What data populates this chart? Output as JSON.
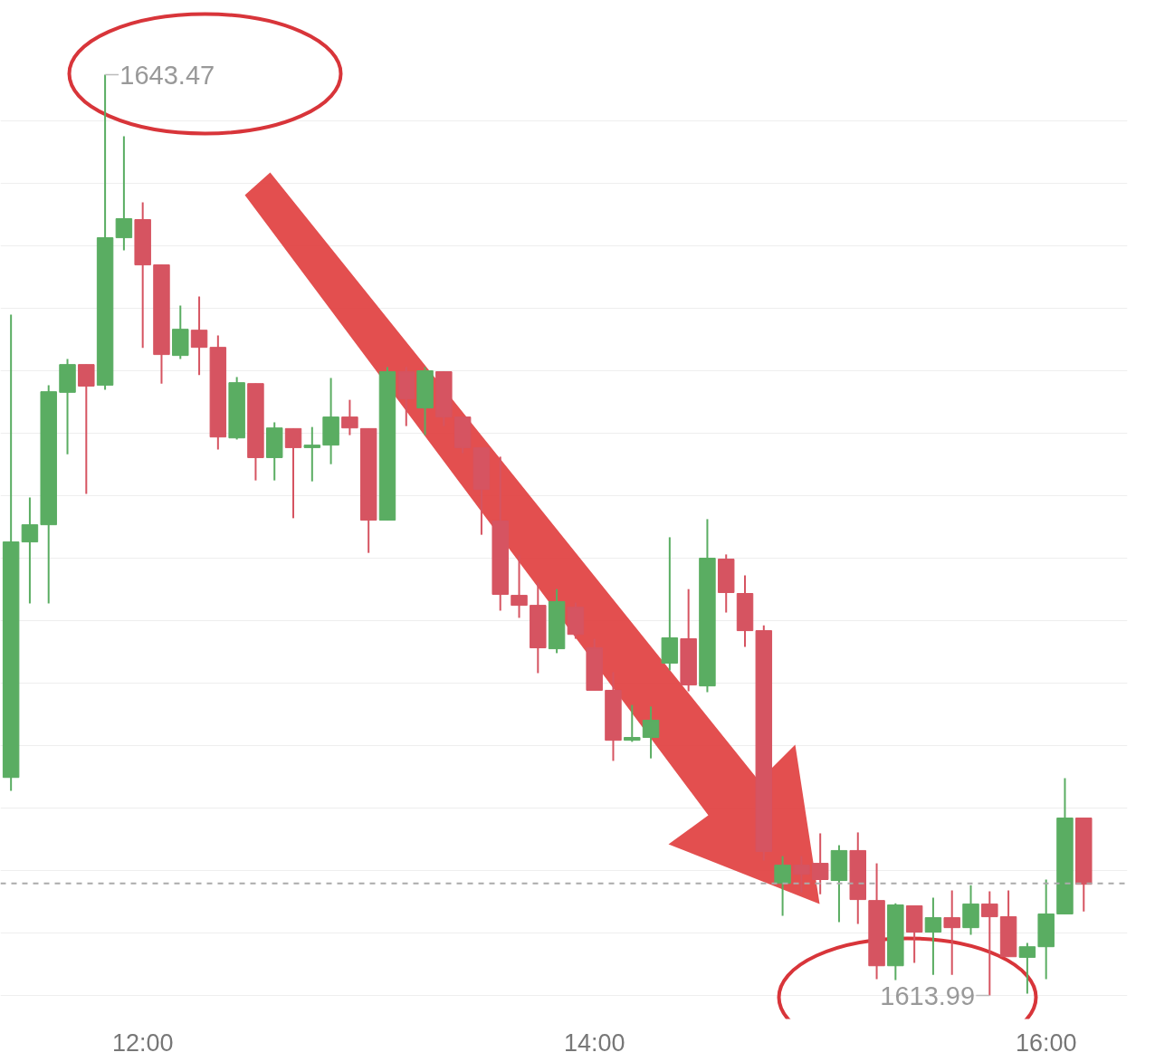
{
  "chart_data": {
    "type": "candlestick",
    "x": [
      11.4167,
      11.5,
      11.5833,
      11.6667,
      11.75,
      11.8333,
      11.9167,
      12,
      12.0833,
      12.1667,
      12.25,
      12.3333,
      12.4167,
      12.5,
      12.5833,
      12.6667,
      12.75,
      12.8333,
      12.9167,
      13,
      13.0833,
      13.1667,
      13.25,
      13.3333,
      13.4167,
      13.5,
      13.5833,
      13.6667,
      13.75,
      13.8333,
      13.9167,
      14,
      14.0833,
      14.1667,
      14.25,
      14.3333,
      14.4167,
      14.5,
      14.5833,
      14.6667,
      14.75,
      14.8333,
      14.9167,
      15,
      15.0833,
      15.1667,
      15.25,
      15.3333,
      15.4167,
      15.5,
      15.5833,
      15.6667,
      15.75,
      15.8333,
      15.9167,
      16,
      16.0833,
      16.1667
    ],
    "ohlc": [
      [
        1620.97,
        1635.79,
        1620.54,
        1628.51
      ],
      [
        1628.51,
        1629.93,
        1626.54,
        1629.06
      ],
      [
        1629.06,
        1633.53,
        1626.54,
        1633.32
      ],
      [
        1633.3,
        1634.37,
        1631.32,
        1634.19
      ],
      [
        1634.19,
        1634.19,
        1630.05,
        1633.5
      ],
      [
        1633.53,
        1643.47,
        1633.38,
        1638.25
      ],
      [
        1638.25,
        1641.5,
        1637.85,
        1638.86
      ],
      [
        1638.83,
        1639.38,
        1634.72,
        1637.38
      ],
      [
        1637.38,
        1637.38,
        1633.58,
        1634.51
      ],
      [
        1634.48,
        1636.08,
        1634.37,
        1635.32
      ],
      [
        1635.29,
        1636.37,
        1633.85,
        1634.74
      ],
      [
        1634.74,
        1635.12,
        1631.47,
        1631.87
      ],
      [
        1631.84,
        1633.79,
        1631.79,
        1633.61
      ],
      [
        1633.58,
        1633.58,
        1630.48,
        1631.21
      ],
      [
        1631.21,
        1632.34,
        1630.48,
        1632.16
      ],
      [
        1632.14,
        1632.14,
        1629.27,
        1631.53
      ],
      [
        1631.53,
        1632.19,
        1630.45,
        1631.61
      ],
      [
        1631.61,
        1633.76,
        1631.0,
        1632.51
      ],
      [
        1632.51,
        1633.06,
        1631.93,
        1632.16
      ],
      [
        1632.14,
        1632.14,
        1628.16,
        1629.21
      ],
      [
        1629.21,
        1634.11,
        1629.21,
        1633.96
      ],
      [
        1633.96,
        1634.11,
        1632.22,
        1633.09
      ],
      [
        1632.8,
        1634.11,
        1631.93,
        1633.99
      ],
      [
        1633.96,
        1633.96,
        1632.22,
        1632.51
      ],
      [
        1632.51,
        1632.51,
        1631.35,
        1631.53
      ],
      [
        1631.53,
        1631.53,
        1628.74,
        1630.19
      ],
      [
        1629.18,
        1631.24,
        1626.31,
        1626.83
      ],
      [
        1626.8,
        1628.08,
        1626.08,
        1626.48
      ],
      [
        1626.48,
        1627.21,
        1624.31,
        1625.12
      ],
      [
        1625.09,
        1627.0,
        1624.95,
        1626.6
      ],
      [
        1626.42,
        1626.57,
        1625.41,
        1625.55
      ],
      [
        1625.12,
        1625.41,
        1623.76,
        1623.76
      ],
      [
        1623.76,
        1624.34,
        1621.5,
        1622.16
      ],
      [
        1622.16,
        1623.29,
        1622.11,
        1622.25
      ],
      [
        1622.25,
        1623.24,
        1621.58,
        1622.8
      ],
      [
        1624.63,
        1628.66,
        1624.4,
        1625.44
      ],
      [
        1625.41,
        1627.0,
        1623.73,
        1623.93
      ],
      [
        1623.9,
        1629.24,
        1623.7,
        1627.99
      ],
      [
        1627.96,
        1628.11,
        1626.25,
        1626.89
      ],
      [
        1626.86,
        1627.44,
        1625.15,
        1625.67
      ],
      [
        1625.67,
        1625.84,
        1618.31,
        1618.6
      ],
      [
        1617.58,
        1618.45,
        1616.54,
        1618.16
      ],
      [
        1618.16,
        1618.45,
        1617.29,
        1617.87
      ],
      [
        1618.22,
        1619.18,
        1617.23,
        1617.7
      ],
      [
        1617.67,
        1618.8,
        1616.34,
        1618.63
      ],
      [
        1618.63,
        1619.21,
        1616.28,
        1617.06
      ],
      [
        1617.03,
        1618.22,
        1614.51,
        1614.94
      ],
      [
        1614.94,
        1616.94,
        1614.48,
        1616.89
      ],
      [
        1616.86,
        1616.86,
        1615.03,
        1616.02
      ],
      [
        1616.02,
        1617.12,
        1614.65,
        1616.48
      ],
      [
        1616.48,
        1617.35,
        1614.65,
        1616.16
      ],
      [
        1616.16,
        1617.52,
        1615.93,
        1616.92
      ],
      [
        1616.92,
        1617.32,
        1613.99,
        1616.51
      ],
      [
        1616.51,
        1617.35,
        1615.23,
        1615.23
      ],
      [
        1615.21,
        1615.67,
        1614.05,
        1615.55
      ],
      [
        1615.55,
        1617.7,
        1614.51,
        1616.6
      ],
      [
        1616.6,
        1620.95,
        1616.6,
        1619.67
      ],
      [
        1619.67,
        1619.67,
        1616.68,
        1617.55
      ]
    ],
    "colors": [
      "#5aad62",
      "#5aad62",
      "#5aad62",
      "#5aad62",
      "#d65461",
      "#5aad62",
      "#5aad62",
      "#d65461",
      "#d65461",
      "#5aad62",
      "#d65461",
      "#d65461",
      "#5aad62",
      "#d65461",
      "#5aad62",
      "#d65461",
      "#5aad62",
      "#5aad62",
      "#d65461",
      "#d65461",
      "#5aad62",
      "#d65461",
      "#5aad62",
      "#d65461",
      "#d65461",
      "#d65461",
      "#d65461",
      "#d65461",
      "#d65461",
      "#5aad62",
      "#d65461",
      "#d65461",
      "#d65461",
      "#5aad62",
      "#5aad62",
      "#5aad62",
      "#d65461",
      "#5aad62",
      "#d65461",
      "#d65461",
      "#d65461",
      "#5aad62",
      "#d65461",
      "#d65461",
      "#5aad62",
      "#d65461",
      "#d65461",
      "#5aad62",
      "#d65461",
      "#5aad62",
      "#d65461",
      "#5aad62",
      "#d65461",
      "#d65461",
      "#5aad62",
      "#5aad62",
      "#5aad62",
      "#d65461"
    ],
    "xlim": [
      11.37,
      16.36
    ],
    "xticks": [
      {
        "value": 12,
        "label": "12:00"
      },
      {
        "value": 14,
        "label": "14:00"
      },
      {
        "value": 16,
        "label": "16:00"
      }
    ],
    "yticks": [
      {
        "value": 1614,
        "label": null
      },
      {
        "value": 1616,
        "label": null
      },
      {
        "value": 1618,
        "label": null
      },
      {
        "value": 1620,
        "label": null
      },
      {
        "value": 1622,
        "label": null
      },
      {
        "value": 1624,
        "label": null
      },
      {
        "value": 1626,
        "label": null
      },
      {
        "value": 1628,
        "label": null
      },
      {
        "value": 1630,
        "label": null
      },
      {
        "value": 1632,
        "label": null
      },
      {
        "value": 1634,
        "label": null
      },
      {
        "value": 1636,
        "label": null
      },
      {
        "value": 1638,
        "label": null
      },
      {
        "value": 1640,
        "label": null
      },
      {
        "value": 1642,
        "label": null
      }
    ],
    "tick_labels": "x",
    "grid": "y",
    "ref_lines": [
      {
        "axis": "y",
        "value": 1617.58,
        "color": "#aaaaaa",
        "line_style": "dashed"
      }
    ],
    "annotations": [
      {
        "text": "1643.47",
        "x": 11.8333,
        "y": 1643.47
      },
      {
        "text": "1613.99",
        "x": 15.75,
        "y": 1613.99
      }
    ]
  }
}
